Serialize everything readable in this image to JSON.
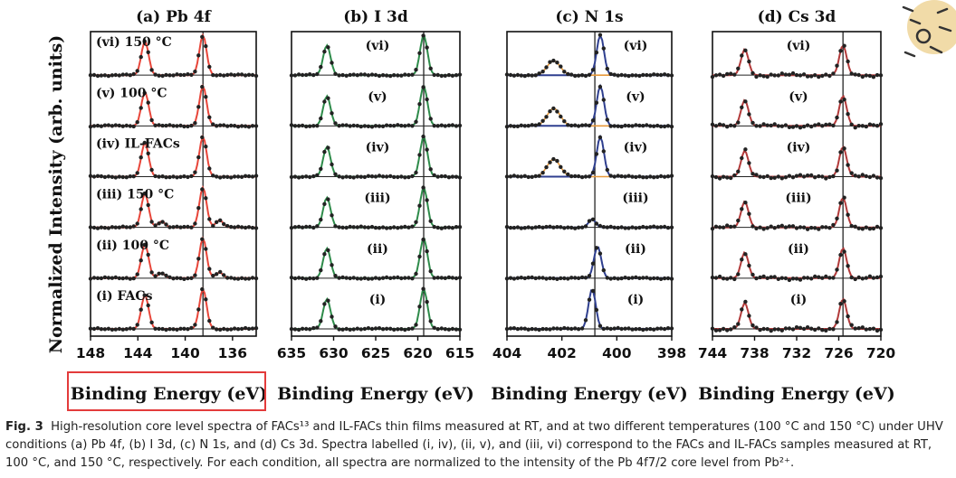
{
  "axis_title": "Normalized Intensity (arb. units)",
  "highlight_color": "#e33b3b",
  "caption": {
    "label": "Fig. 3",
    "text": "High-resolution core level spectra of FACs¹³ and IL-FACs thin films measured at RT, and at two different temperatures (100 °C and 150 °C) under UHV conditions (a) Pb 4f, (b) I 3d, (c) N 1s, and (d) Cs 3d. Spectra labelled (i, iv), (ii, v), and (iii, vi) correspond to the FACs and IL-FACs samples measured at RT, 100 °C, and 150 °C, respectively. For each condition, all spectra are normalized to the intensity of the Pb 4f7/2 core level from Pb²⁺."
  },
  "chart_data": [
    {
      "type": "line",
      "title": "(a) Pb 4f",
      "xlabel": "Binding Energy (eV)",
      "xlim": [
        148,
        134
      ],
      "xticks": [
        148,
        144,
        140,
        136
      ],
      "reference_line": 138.5,
      "fit_color": "#e8463a",
      "data_color": "#222222",
      "series": [
        {
          "name": "(vi) 150 °C",
          "peaks": [
            {
              "x": 143.4,
              "h": 0.85
            },
            {
              "x": 138.5,
              "h": 1.0
            }
          ]
        },
        {
          "name": "(v) 100 °C",
          "peaks": [
            {
              "x": 143.4,
              "h": 0.85
            },
            {
              "x": 138.5,
              "h": 1.0
            }
          ]
        },
        {
          "name": "(iv) IL-FACs",
          "peaks": [
            {
              "x": 143.4,
              "h": 0.85
            },
            {
              "x": 138.5,
              "h": 1.0
            }
          ]
        },
        {
          "name": "(iii) 150 °C",
          "peaks": [
            {
              "x": 143.4,
              "h": 0.85
            },
            {
              "x": 138.5,
              "h": 1.0
            },
            {
              "x": 142.0,
              "h": 0.15
            },
            {
              "x": 137.1,
              "h": 0.18
            }
          ]
        },
        {
          "name": "(ii) 100 °C",
          "peaks": [
            {
              "x": 143.4,
              "h": 0.85
            },
            {
              "x": 138.5,
              "h": 1.0
            },
            {
              "x": 142.0,
              "h": 0.12
            },
            {
              "x": 137.1,
              "h": 0.14
            }
          ]
        },
        {
          "name": "(i) FACs",
          "peaks": [
            {
              "x": 143.4,
              "h": 0.85
            },
            {
              "x": 138.5,
              "h": 1.0
            }
          ]
        }
      ]
    },
    {
      "type": "line",
      "title": "(b) I 3d",
      "xlabel": "Binding Energy (eV)",
      "xlim": [
        635,
        615
      ],
      "xticks": [
        635,
        630,
        625,
        620,
        615
      ],
      "reference_line": 619.3,
      "fit_color": "#2e8b4a",
      "data_color": "#222222",
      "series": [
        {
          "name": "(vi)",
          "peaks": [
            {
              "x": 630.8,
              "h": 0.75
            },
            {
              "x": 619.3,
              "h": 1.0
            }
          ]
        },
        {
          "name": "(v)",
          "peaks": [
            {
              "x": 630.8,
              "h": 0.75
            },
            {
              "x": 619.3,
              "h": 1.0
            }
          ]
        },
        {
          "name": "(iv)",
          "peaks": [
            {
              "x": 630.8,
              "h": 0.75
            },
            {
              "x": 619.3,
              "h": 1.0
            }
          ]
        },
        {
          "name": "(iii)",
          "peaks": [
            {
              "x": 630.8,
              "h": 0.75
            },
            {
              "x": 619.3,
              "h": 1.0
            }
          ]
        },
        {
          "name": "(ii)",
          "peaks": [
            {
              "x": 630.8,
              "h": 0.75
            },
            {
              "x": 619.3,
              "h": 1.0
            }
          ]
        },
        {
          "name": "(i)",
          "peaks": [
            {
              "x": 630.8,
              "h": 0.75
            },
            {
              "x": 619.3,
              "h": 1.0
            }
          ]
        }
      ]
    },
    {
      "type": "line",
      "title": "(c) N 1s",
      "xlabel": "Binding Energy (eV)",
      "xlim": [
        404,
        398
      ],
      "xticks": [
        404,
        402,
        400,
        398
      ],
      "reference_line": 400.8,
      "fit_color": "#2f3f8f",
      "secondary_color": "#e89a3c",
      "data_color": "#222222",
      "series": [
        {
          "name": "(vi)",
          "peaks": [
            {
              "x": 400.6,
              "h": 1.0
            }
          ],
          "secondary": {
            "x": 402.3,
            "h": 0.45
          }
        },
        {
          "name": "(v)",
          "peaks": [
            {
              "x": 400.6,
              "h": 1.0
            }
          ],
          "secondary": {
            "x": 402.3,
            "h": 0.55
          }
        },
        {
          "name": "(iv)",
          "peaks": [
            {
              "x": 400.6,
              "h": 1.0
            }
          ],
          "secondary": {
            "x": 402.3,
            "h": 0.55
          }
        },
        {
          "name": "(iii)",
          "peaks": [
            {
              "x": 400.9,
              "h": 0.2
            }
          ]
        },
        {
          "name": "(ii)",
          "peaks": [
            {
              "x": 400.7,
              "h": 0.8
            }
          ]
        },
        {
          "name": "(i)",
          "peaks": [
            {
              "x": 400.9,
              "h": 1.0
            }
          ]
        }
      ]
    },
    {
      "type": "line",
      "title": "(d) Cs 3d",
      "xlabel": "Binding Energy (eV)",
      "xlim": [
        744,
        720
      ],
      "xticks": [
        744,
        738,
        732,
        726,
        720
      ],
      "reference_line": 725.4,
      "fit_color": "#b23a3a",
      "data_color": "#222222",
      "series": [
        {
          "name": "(vi)",
          "peaks": [
            {
              "x": 739.4,
              "h": 0.65
            },
            {
              "x": 725.4,
              "h": 0.75
            }
          ]
        },
        {
          "name": "(v)",
          "peaks": [
            {
              "x": 739.4,
              "h": 0.65
            },
            {
              "x": 725.4,
              "h": 0.75
            }
          ]
        },
        {
          "name": "(iv)",
          "peaks": [
            {
              "x": 739.4,
              "h": 0.65
            },
            {
              "x": 725.4,
              "h": 0.75
            }
          ]
        },
        {
          "name": "(iii)",
          "peaks": [
            {
              "x": 739.4,
              "h": 0.65
            },
            {
              "x": 725.4,
              "h": 0.75
            }
          ]
        },
        {
          "name": "(ii)",
          "peaks": [
            {
              "x": 739.4,
              "h": 0.65
            },
            {
              "x": 725.4,
              "h": 0.75
            }
          ]
        },
        {
          "name": "(i)",
          "peaks": [
            {
              "x": 739.4,
              "h": 0.65
            },
            {
              "x": 725.4,
              "h": 0.75
            }
          ]
        }
      ]
    }
  ]
}
